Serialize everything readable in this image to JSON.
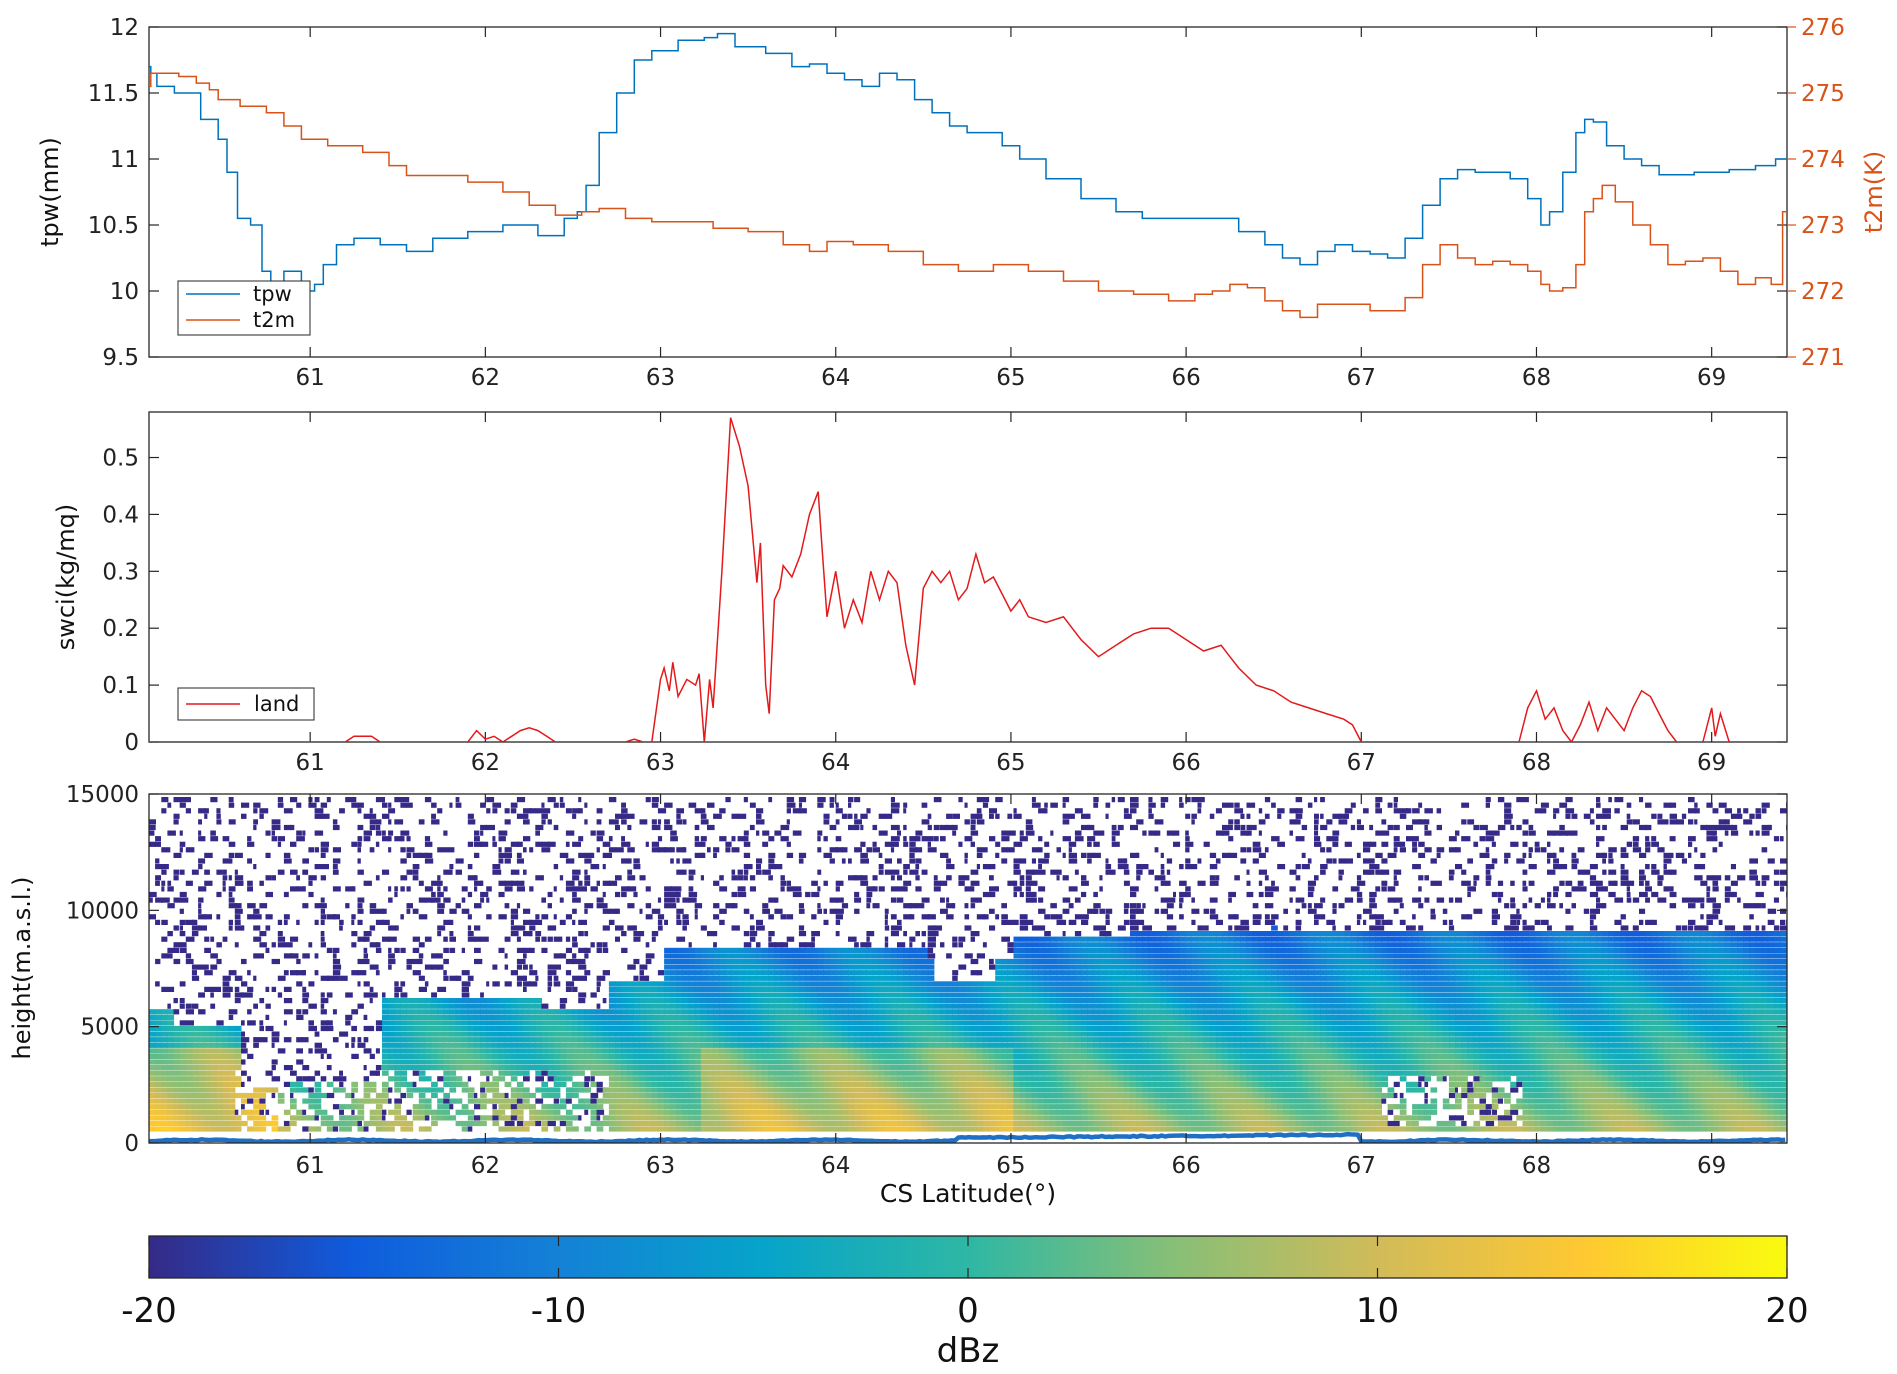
{
  "chart_data": [
    {
      "type": "line",
      "panel": "top",
      "xlim": [
        60.08,
        69.43
      ],
      "ylim": [
        9.5,
        12
      ],
      "ylim_right": [
        271,
        276
      ],
      "ylabel": "tpw(mm)",
      "ylabel_right": "t2m(K)",
      "x_ticks": [
        "61",
        "62",
        "63",
        "64",
        "65",
        "66",
        "67",
        "68",
        "69"
      ],
      "y_ticks": [
        "9.5",
        "10",
        "10.5",
        "11",
        "11.5",
        "12"
      ],
      "y_ticks_right": [
        "271",
        "272",
        "273",
        "274",
        "275",
        "276"
      ],
      "legend_position": "bottom-left",
      "series": [
        {
          "name": "tpw",
          "axis": "left",
          "color": "#0072bd",
          "x": [
            60.08,
            60.1,
            60.15,
            60.3,
            60.45,
            60.5,
            60.55,
            60.62,
            60.7,
            60.75,
            60.8,
            60.9,
            61.0,
            61.05,
            61.1,
            61.2,
            61.3,
            61.5,
            61.6,
            61.8,
            62.0,
            62.2,
            62.4,
            62.5,
            62.55,
            62.6,
            62.7,
            62.8,
            62.9,
            63.0,
            63.2,
            63.3,
            63.35,
            63.5,
            63.7,
            63.8,
            63.9,
            64.0,
            64.1,
            64.2,
            64.3,
            64.4,
            64.5,
            64.6,
            64.7,
            64.8,
            64.9,
            65.0,
            65.1,
            65.3,
            65.5,
            65.7,
            65.8,
            66.0,
            66.2,
            66.4,
            66.5,
            66.6,
            66.7,
            66.8,
            66.9,
            67.0,
            67.1,
            67.2,
            67.3,
            67.4,
            67.5,
            67.6,
            67.7,
            67.8,
            67.9,
            68.0,
            68.05,
            68.1,
            68.2,
            68.25,
            68.3,
            68.35,
            68.45,
            68.55,
            68.65,
            68.75,
            68.8,
            69.0,
            69.2,
            69.3,
            69.43
          ],
          "y": [
            11.7,
            11.65,
            11.55,
            11.5,
            11.3,
            11.15,
            10.9,
            10.55,
            10.5,
            10.15,
            10.05,
            10.15,
            10.0,
            10.05,
            10.2,
            10.35,
            10.4,
            10.35,
            10.3,
            10.4,
            10.45,
            10.5,
            10.42,
            10.55,
            10.6,
            10.8,
            11.2,
            11.5,
            11.75,
            11.82,
            11.9,
            11.92,
            11.95,
            11.85,
            11.8,
            11.7,
            11.72,
            11.65,
            11.6,
            11.55,
            11.65,
            11.6,
            11.45,
            11.35,
            11.25,
            11.2,
            11.2,
            11.1,
            11.0,
            10.85,
            10.7,
            10.6,
            10.55,
            10.55,
            10.55,
            10.45,
            10.35,
            10.25,
            10.2,
            10.3,
            10.35,
            10.3,
            10.28,
            10.25,
            10.4,
            10.65,
            10.85,
            10.92,
            10.9,
            10.9,
            10.85,
            10.7,
            10.5,
            10.6,
            10.9,
            11.2,
            11.3,
            11.28,
            11.1,
            11.0,
            10.95,
            10.88,
            10.88,
            10.9,
            10.92,
            10.95,
            11.0
          ]
        },
        {
          "name": "t2m",
          "axis": "right",
          "color": "#d95319",
          "x": [
            60.08,
            60.1,
            60.2,
            60.3,
            60.4,
            60.45,
            60.5,
            60.7,
            60.8,
            60.9,
            61.0,
            61.2,
            61.4,
            61.5,
            61.6,
            61.8,
            62.0,
            62.2,
            62.3,
            62.5,
            62.6,
            62.7,
            62.9,
            63.0,
            63.2,
            63.4,
            63.6,
            63.8,
            63.9,
            64.0,
            64.2,
            64.4,
            64.6,
            64.8,
            65.0,
            65.2,
            65.4,
            65.6,
            65.8,
            66.0,
            66.1,
            66.2,
            66.3,
            66.4,
            66.5,
            66.6,
            66.7,
            66.8,
            66.9,
            67.0,
            67.1,
            67.2,
            67.3,
            67.4,
            67.5,
            67.6,
            67.7,
            67.8,
            67.9,
            68.0,
            68.05,
            68.1,
            68.2,
            68.25,
            68.3,
            68.35,
            68.4,
            68.5,
            68.6,
            68.7,
            68.8,
            68.9,
            69.0,
            69.1,
            69.2,
            69.3,
            69.38,
            69.43
          ],
          "y": [
            275.1,
            275.3,
            275.3,
            275.25,
            275.15,
            275.05,
            274.9,
            274.8,
            274.7,
            274.5,
            274.3,
            274.2,
            274.1,
            273.9,
            273.75,
            273.75,
            273.65,
            273.5,
            273.3,
            273.15,
            273.2,
            273.25,
            273.1,
            273.05,
            273.05,
            272.95,
            272.9,
            272.7,
            272.6,
            272.75,
            272.7,
            272.6,
            272.4,
            272.3,
            272.4,
            272.3,
            272.15,
            272.0,
            271.95,
            271.85,
            271.95,
            272.0,
            272.1,
            272.05,
            271.85,
            271.7,
            271.6,
            271.8,
            271.8,
            271.8,
            271.7,
            271.7,
            271.9,
            272.4,
            272.7,
            272.5,
            272.4,
            272.45,
            272.4,
            272.3,
            272.1,
            272.0,
            272.05,
            272.4,
            273.2,
            273.4,
            273.6,
            273.35,
            273.0,
            272.7,
            272.4,
            272.45,
            272.5,
            272.3,
            272.1,
            272.2,
            272.1,
            273.2
          ]
        }
      ]
    },
    {
      "type": "line",
      "panel": "middle",
      "xlim": [
        60.08,
        69.43
      ],
      "ylim": [
        0,
        0.58
      ],
      "ylabel": "swci(kg/mq)",
      "x_ticks": [
        "61",
        "62",
        "63",
        "64",
        "65",
        "66",
        "67",
        "68",
        "69"
      ],
      "y_ticks": [
        "0",
        "0.1",
        "0.2",
        "0.3",
        "0.4",
        "0.5"
      ],
      "legend_position": "bottom-left",
      "series": [
        {
          "name": "land",
          "color": "#e31a1c",
          "x": [
            60.08,
            61.2,
            61.25,
            61.3,
            61.35,
            61.4,
            61.9,
            61.95,
            62.0,
            62.05,
            62.1,
            62.2,
            62.25,
            62.3,
            62.35,
            62.4,
            62.8,
            62.85,
            62.9,
            62.95,
            63.0,
            63.02,
            63.05,
            63.07,
            63.1,
            63.15,
            63.2,
            63.22,
            63.25,
            63.28,
            63.3,
            63.35,
            63.4,
            63.45,
            63.5,
            63.55,
            63.57,
            63.6,
            63.62,
            63.65,
            63.68,
            63.7,
            63.75,
            63.8,
            63.85,
            63.9,
            63.92,
            63.95,
            64.0,
            64.05,
            64.1,
            64.15,
            64.2,
            64.25,
            64.3,
            64.35,
            64.4,
            64.45,
            64.5,
            64.55,
            64.6,
            64.65,
            64.7,
            64.75,
            64.8,
            64.85,
            64.9,
            64.95,
            65.0,
            65.05,
            65.1,
            65.2,
            65.3,
            65.35,
            65.4,
            65.5,
            65.6,
            65.7,
            65.8,
            65.9,
            66.0,
            66.1,
            66.2,
            66.25,
            66.3,
            66.4,
            66.5,
            66.6,
            66.7,
            66.8,
            66.9,
            66.95,
            67.0,
            67.05,
            67.9,
            67.95,
            68.0,
            68.05,
            68.1,
            68.15,
            68.2,
            68.25,
            68.3,
            68.35,
            68.4,
            68.45,
            68.5,
            68.55,
            68.6,
            68.65,
            68.7,
            68.75,
            68.8,
            68.85,
            68.95,
            69.0,
            69.02,
            69.05,
            69.1,
            69.43
          ],
          "y": [
            0,
            0,
            0.01,
            0.01,
            0.01,
            0,
            0,
            0.02,
            0.005,
            0.01,
            0,
            0.02,
            0.025,
            0.02,
            0.01,
            0,
            0,
            0.005,
            0,
            0,
            0.11,
            0.13,
            0.09,
            0.14,
            0.08,
            0.11,
            0.1,
            0.12,
            0,
            0.11,
            0.06,
            0.3,
            0.57,
            0.52,
            0.45,
            0.28,
            0.35,
            0.1,
            0.05,
            0.25,
            0.27,
            0.31,
            0.29,
            0.33,
            0.4,
            0.44,
            0.35,
            0.22,
            0.3,
            0.2,
            0.25,
            0.21,
            0.3,
            0.25,
            0.3,
            0.28,
            0.17,
            0.1,
            0.27,
            0.3,
            0.28,
            0.3,
            0.25,
            0.27,
            0.33,
            0.28,
            0.29,
            0.26,
            0.23,
            0.25,
            0.22,
            0.21,
            0.22,
            0.2,
            0.18,
            0.15,
            0.17,
            0.19,
            0.2,
            0.2,
            0.18,
            0.16,
            0.17,
            0.15,
            0.13,
            0.1,
            0.09,
            0.07,
            0.06,
            0.05,
            0.04,
            0.03,
            0,
            0,
            0,
            0.06,
            0.09,
            0.04,
            0.06,
            0.02,
            0.0,
            0.03,
            0.07,
            0.02,
            0.06,
            0.04,
            0.02,
            0.06,
            0.09,
            0.08,
            0.05,
            0.02,
            0,
            0,
            0,
            0.06,
            0.01,
            0.05,
            0,
            0
          ]
        }
      ]
    },
    {
      "type": "heatmap",
      "panel": "bottom",
      "xlim": [
        60.08,
        69.43
      ],
      "ylim": [
        0,
        15000
      ],
      "xlabel": "CS Latitude(°)",
      "ylabel": "height(m.a.s.l.)",
      "x_ticks": [
        "61",
        "62",
        "63",
        "64",
        "65",
        "66",
        "67",
        "68",
        "69"
      ],
      "y_ticks": [
        "0",
        "5000",
        "10000",
        "15000"
      ],
      "colorbar": {
        "label": "dBz",
        "range": [
          -20,
          20
        ],
        "ticks": [
          "-20",
          "-10",
          "0",
          "10",
          "20"
        ],
        "colormap": "parula"
      }
    }
  ]
}
